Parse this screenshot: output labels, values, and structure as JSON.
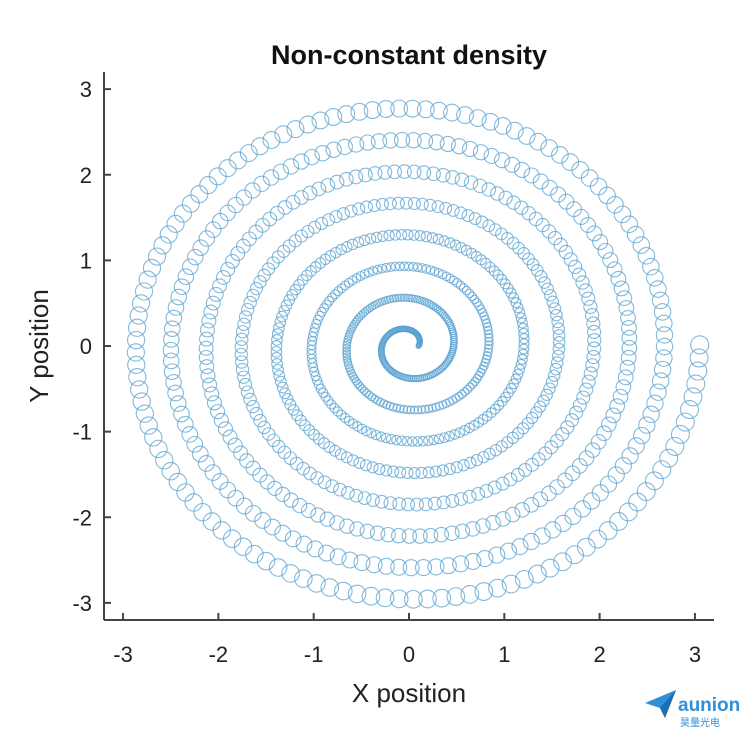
{
  "chart_data": {
    "type": "scatter",
    "title": "Non-constant density",
    "xlabel": "X position",
    "ylabel": "Y position",
    "xlim": [
      -3.2,
      3.2
    ],
    "ylim": [
      -3.2,
      3.2
    ],
    "xticks": [
      "-3",
      "-2",
      "-1",
      "0",
      "1",
      "2",
      "3"
    ],
    "yticks": [
      "3",
      "2",
      "1",
      "0",
      "-1",
      "-2",
      "-3"
    ],
    "grid": false,
    "marker": "open-circle",
    "spiral": {
      "theta_start": 0,
      "theta_end": 50.27,
      "radius_start": 0.1,
      "radius_end": 3.05,
      "point_count": 1000
    },
    "series_color": "#5aa1d0"
  },
  "watermark": {
    "brand": "aunion",
    "sub": "昊量光电",
    "color": "#2f8fd8"
  }
}
